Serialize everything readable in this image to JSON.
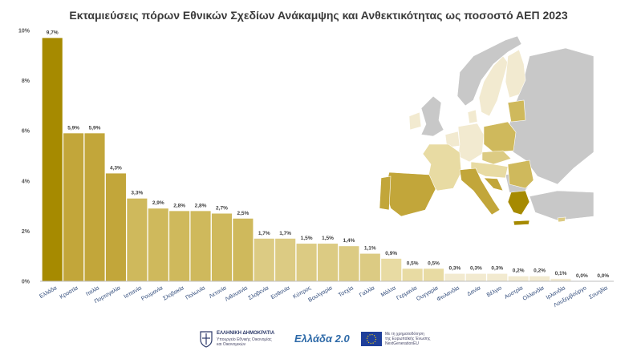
{
  "title": "Εκταμιεύσεις πόρων Εθνικών Σχεδίων Ανάκαμψης και Ανθεκτικότητας ως ποσοστό ΑΕΠ 2023",
  "chart_data": {
    "type": "bar",
    "title": "Εκταμιεύσεις πόρων Εθνικών Σχεδίων Ανάκαμψης και Ανθεκτικότητας ως ποσοστό ΑΕΠ 2023",
    "categories": [
      "Ελλάδα",
      "Κροατία",
      "Ιταλία",
      "Πορτογαλία",
      "Ισπανία",
      "Ρουμανία",
      "Σλοβακία",
      "Πολωνία",
      "Λετονία",
      "Λιθουανία",
      "Σλοβενία",
      "Εσθονία",
      "Κύπρος",
      "Βουλγαρία",
      "Τσεχία",
      "Γαλλία",
      "Μάλτα",
      "Γερμανία",
      "Ουγγαρία",
      "Φινλανδία",
      "Δανία",
      "Βέλγιο",
      "Αυστρία",
      "Ολλανδία",
      "Ιρλανδία",
      "Λουξεμβούργο",
      "Σουηδία"
    ],
    "values": [
      9.7,
      5.9,
      5.9,
      4.3,
      3.3,
      2.9,
      2.8,
      2.8,
      2.7,
      2.5,
      1.7,
      1.7,
      1.5,
      1.5,
      1.4,
      1.1,
      0.9,
      0.5,
      0.5,
      0.3,
      0.3,
      0.3,
      0.2,
      0.2,
      0.1,
      0.0,
      0.0
    ],
    "value_labels": [
      "9,7%",
      "5,9%",
      "5,9%",
      "4,3%",
      "3,3%",
      "2,9%",
      "2,8%",
      "2,8%",
      "2,7%",
      "2,5%",
      "1,7%",
      "1,7%",
      "1,5%",
      "1,5%",
      "1,4%",
      "1,1%",
      "0,9%",
      "0,5%",
      "0,5%",
      "0,3%",
      "0,3%",
      "0,3%",
      "0,2%",
      "0,2%",
      "0,1%",
      "0,0%",
      "0,0%"
    ],
    "y_ticks": [
      "0%",
      "2%",
      "4%",
      "6%",
      "8%",
      "10%"
    ],
    "ylim": [
      0,
      10
    ],
    "xlabel": "",
    "ylabel": "",
    "grid": false,
    "legend": "none",
    "colors": {
      "highlight": "#a68a00",
      "dark": "#c2a63a",
      "mid": "#cfb95c",
      "light": "#dccb83",
      "lighter": "#e8dba3",
      "lightest": "#f2ead0"
    }
  },
  "map": {
    "non_eu_color": "#c8c8c8",
    "greece_color": "#a68a00"
  },
  "footer": {
    "gov_title": "ΕΛΛΗΝΙΚΗ ΔΗΜΟΚΡΑΤΙΑ",
    "gov_sub1": "Υπουργείο Εθνικής Οικονομίας",
    "gov_sub2": "και Οικονομικών",
    "greece20": "Ελλάδα 2.0",
    "eu_text1": "Με τη χρηματοδότηση",
    "eu_text2": "της Ευρωπαϊκής Ένωσης",
    "eu_text3": "NextGenerationEU"
  }
}
